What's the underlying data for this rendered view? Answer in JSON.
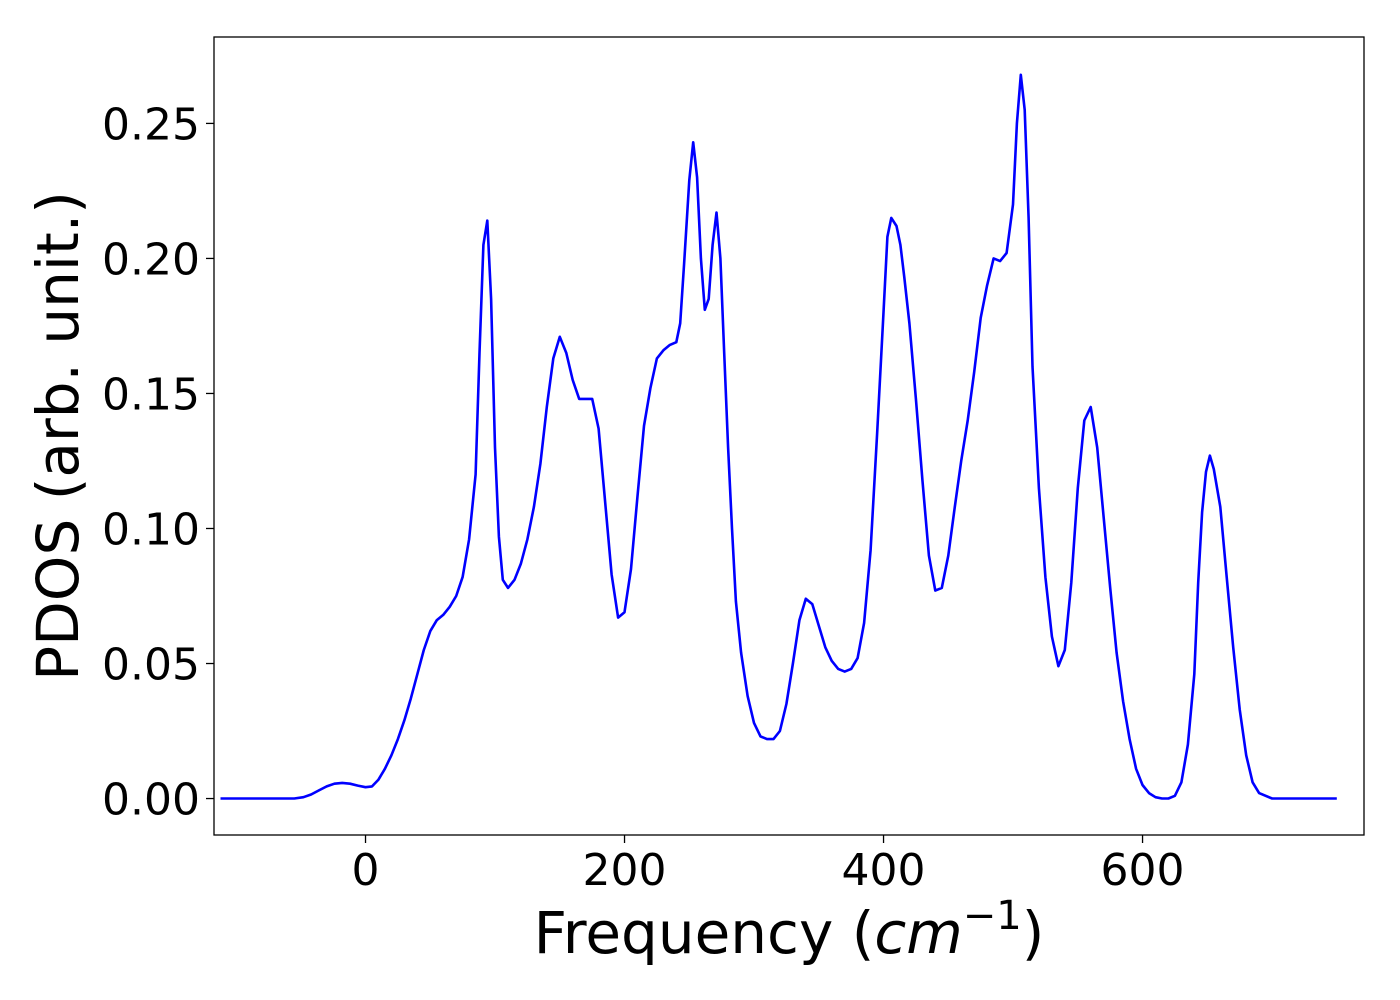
{
  "chart_data": {
    "type": "line",
    "title": "",
    "xlabel_text": "Frequency (",
    "xlabel_math": "cm",
    "xlabel_sup": "−1",
    "xlabel_close": ")",
    "ylabel": "PDOS (arb. unit.)",
    "xlim": [
      -117,
      771
    ],
    "ylim": [
      -0.0135,
      0.282
    ],
    "xticks": [
      0,
      200,
      400,
      600
    ],
    "xtick_labels": [
      "0",
      "200",
      "400",
      "600"
    ],
    "yticks": [
      0.0,
      0.05,
      0.1,
      0.15,
      0.2,
      0.25
    ],
    "ytick_labels": [
      "0.00",
      "0.05",
      "0.10",
      "0.15",
      "0.20",
      "0.25"
    ],
    "grid": false,
    "legend": "none",
    "line_color": "#0000ff",
    "series": [
      {
        "x": [
          -112,
          -90,
          -70,
          -55,
          -48,
          -42,
          -36,
          -30,
          -24,
          -18,
          -12,
          -6,
          0,
          5,
          10,
          15,
          20,
          25,
          30,
          35,
          40,
          45,
          50,
          55,
          60,
          65,
          70,
          75,
          80,
          85,
          88,
          91,
          94,
          97,
          100,
          103,
          106,
          110,
          115,
          120,
          125,
          130,
          135,
          140,
          145,
          150,
          155,
          160,
          165,
          170,
          175,
          180,
          185,
          190,
          195,
          200,
          205,
          210,
          215,
          220,
          225,
          230,
          235,
          240,
          243,
          246,
          250,
          253,
          256,
          259,
          262,
          265,
          268,
          271,
          274,
          277,
          280,
          283,
          286,
          290,
          295,
          300,
          305,
          310,
          315,
          320,
          325,
          330,
          335,
          340,
          345,
          350,
          355,
          360,
          365,
          370,
          375,
          380,
          385,
          390,
          395,
          400,
          403,
          406,
          410,
          413,
          416,
          420,
          425,
          430,
          435,
          440,
          445,
          450,
          455,
          460,
          465,
          470,
          475,
          480,
          485,
          490,
          495,
          500,
          503,
          506,
          509,
          512,
          515,
          520,
          525,
          530,
          535,
          540,
          545,
          550,
          555,
          560,
          565,
          570,
          575,
          580,
          585,
          590,
          595,
          600,
          605,
          610,
          615,
          620,
          625,
          630,
          635,
          640,
          643,
          646,
          649,
          652,
          655,
          660,
          665,
          670,
          675,
          680,
          685,
          690,
          700,
          720,
          750
        ],
        "y": [
          0,
          0,
          0,
          0,
          0.0005,
          0.0015,
          0.003,
          0.0045,
          0.0055,
          0.0058,
          0.0055,
          0.0048,
          0.0042,
          0.0045,
          0.007,
          0.011,
          0.016,
          0.022,
          0.029,
          0.037,
          0.046,
          0.055,
          0.062,
          0.066,
          0.068,
          0.071,
          0.075,
          0.082,
          0.096,
          0.12,
          0.165,
          0.205,
          0.214,
          0.185,
          0.13,
          0.097,
          0.081,
          0.078,
          0.081,
          0.087,
          0.096,
          0.108,
          0.124,
          0.145,
          0.163,
          0.171,
          0.165,
          0.155,
          0.148,
          0.148,
          0.148,
          0.137,
          0.11,
          0.083,
          0.067,
          0.069,
          0.085,
          0.112,
          0.138,
          0.152,
          0.163,
          0.166,
          0.168,
          0.169,
          0.176,
          0.198,
          0.229,
          0.243,
          0.23,
          0.2,
          0.181,
          0.185,
          0.205,
          0.217,
          0.2,
          0.165,
          0.13,
          0.1,
          0.073,
          0.054,
          0.038,
          0.028,
          0.023,
          0.022,
          0.022,
          0.025,
          0.035,
          0.05,
          0.066,
          0.074,
          0.072,
          0.064,
          0.056,
          0.051,
          0.048,
          0.047,
          0.048,
          0.052,
          0.065,
          0.092,
          0.135,
          0.18,
          0.208,
          0.215,
          0.212,
          0.205,
          0.193,
          0.176,
          0.148,
          0.118,
          0.09,
          0.077,
          0.078,
          0.09,
          0.108,
          0.125,
          0.14,
          0.158,
          0.178,
          0.19,
          0.2,
          0.199,
          0.202,
          0.22,
          0.25,
          0.268,
          0.255,
          0.215,
          0.16,
          0.115,
          0.082,
          0.06,
          0.049,
          0.055,
          0.08,
          0.115,
          0.14,
          0.145,
          0.13,
          0.104,
          0.078,
          0.054,
          0.036,
          0.022,
          0.011,
          0.005,
          0.002,
          0.0005,
          0,
          0,
          0.001,
          0.006,
          0.02,
          0.046,
          0.08,
          0.106,
          0.121,
          0.127,
          0.122,
          0.108,
          0.082,
          0.056,
          0.033,
          0.016,
          0.006,
          0.002,
          0,
          0,
          0
        ]
      }
    ]
  }
}
